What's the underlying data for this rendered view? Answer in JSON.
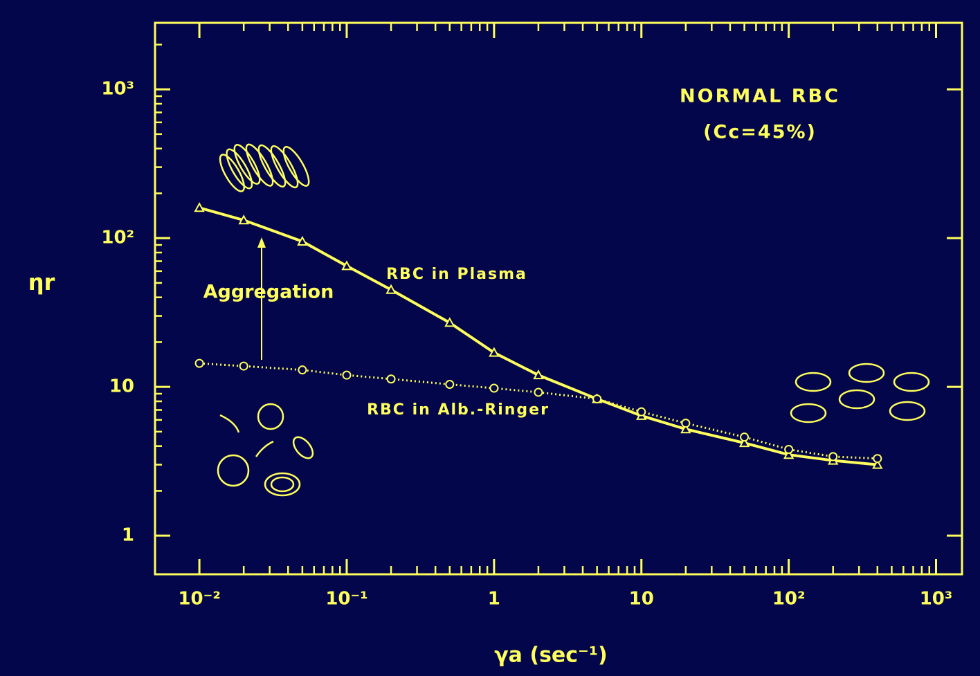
{
  "chart_data": {
    "type": "line",
    "annotations": [
      "NORMAL RBC",
      "(Cc=45%)",
      "Aggregation"
    ],
    "x_label": "γa (sec⁻¹)",
    "y_label": "ηr",
    "log_x": true,
    "log_y": true,
    "color": "#ffff5c",
    "x": [
      0.01,
      0.02,
      0.05,
      0.1,
      0.2,
      0.5,
      1,
      2,
      5,
      10,
      20,
      50,
      100,
      200,
      400
    ],
    "series": [
      {
        "name": "RBC in Plasma",
        "color": "#ffff5c",
        "marker": "triangle",
        "line_style": "solid",
        "values": [
          160,
          132,
          95,
          65,
          45,
          27,
          17,
          12,
          8.3,
          6.4,
          5.2,
          4.2,
          3.5,
          3.2,
          3.0
        ]
      },
      {
        "name": "RBC in Alb.-Ringer",
        "color": "#ffff5c",
        "marker": "circle",
        "line_style": "dotted",
        "values": [
          14.4,
          13.8,
          13,
          12,
          11.3,
          10.4,
          9.8,
          9.2,
          8.3,
          6.8,
          5.7,
          4.6,
          3.8,
          3.4,
          3.3
        ]
      }
    ],
    "xlim": [
      0.005,
      1500
    ],
    "xticks": [
      {
        "value": 0.01,
        "label": "10⁻²"
      },
      {
        "value": 0.1,
        "label": "10⁻¹"
      },
      1,
      10,
      {
        "value": 100,
        "label": "10²"
      },
      {
        "value": 1000,
        "label": "10³"
      }
    ],
    "ylim": [
      0.55,
      2800
    ],
    "yticks": [
      1,
      10,
      {
        "value": 100,
        "label": "10²"
      },
      {
        "value": 1000,
        "label": "10³"
      }
    ]
  }
}
